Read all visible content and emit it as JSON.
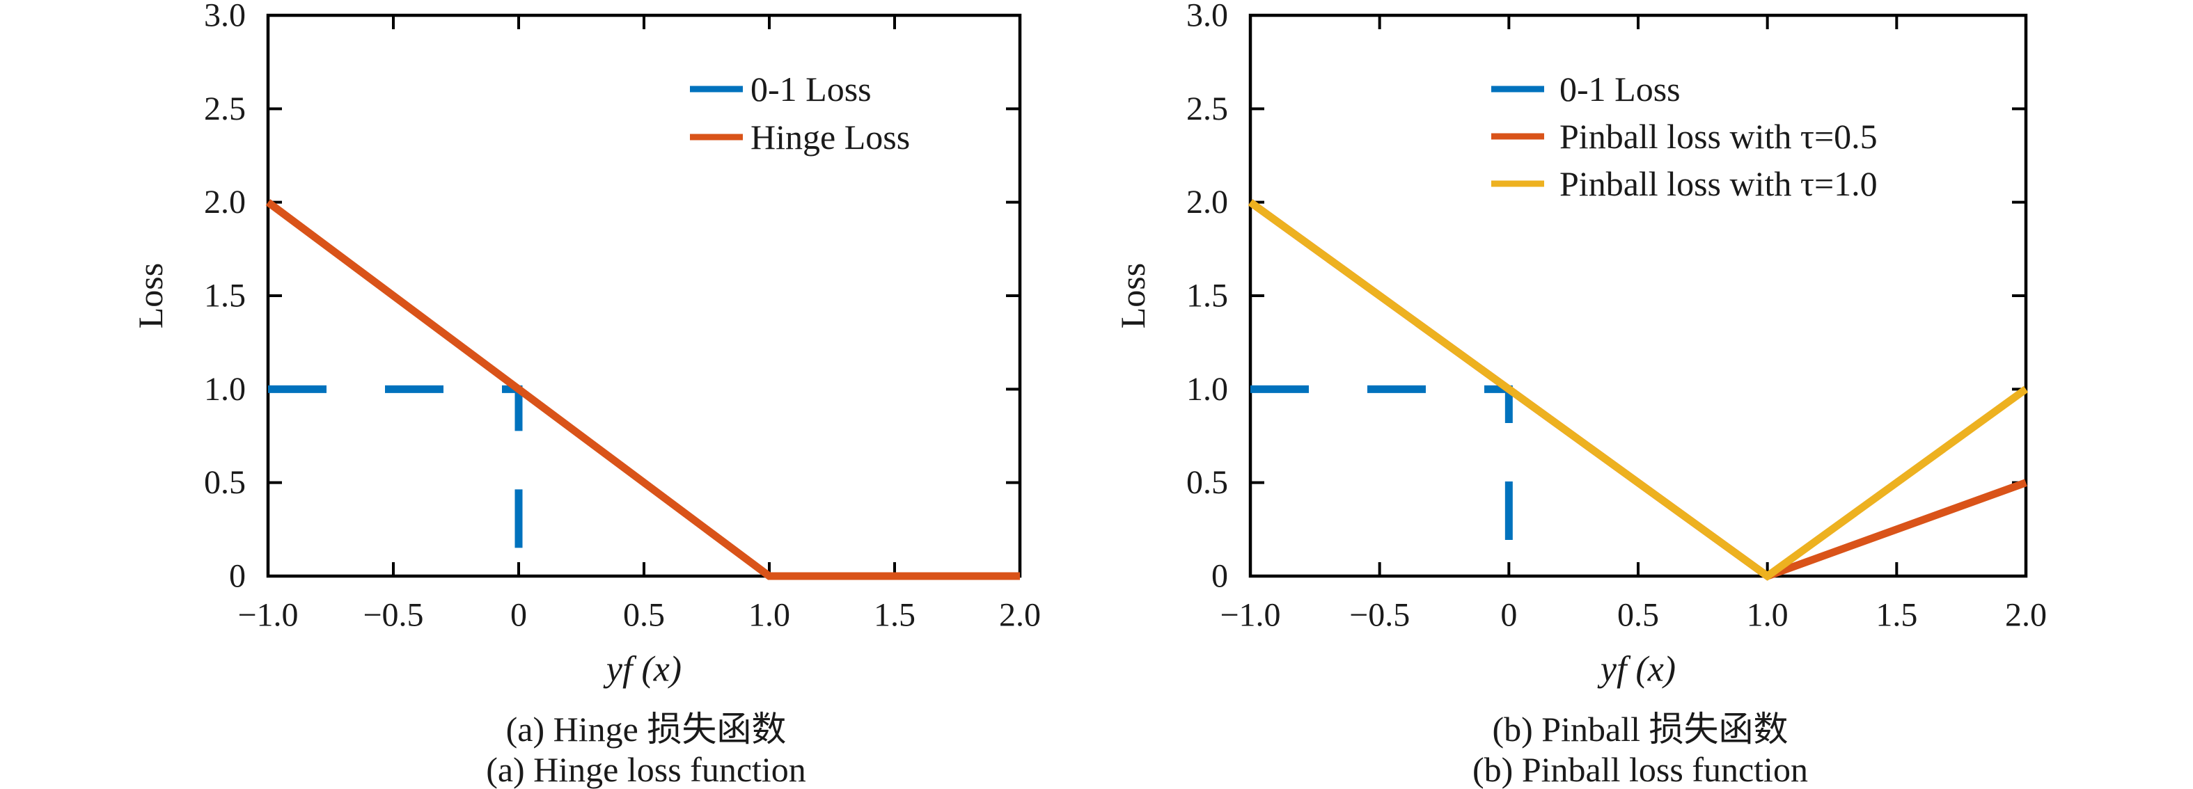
{
  "figure": {
    "background": "#ffffff",
    "axis_color": "#000000",
    "font_color": "#1a1a1a"
  },
  "chart_data": [
    {
      "type": "line",
      "title": "",
      "xlabel": "yf (x)",
      "ylabel": "Loss",
      "xlim": [
        -1,
        2
      ],
      "ylim": [
        0,
        3
      ],
      "grid": false,
      "legend_position": "upper-right-inside-no-box",
      "xticks": {
        "values": [
          -1,
          -0.5,
          0,
          0.5,
          1,
          1.5,
          2
        ],
        "labels": [
          "−1.0",
          "−0.5",
          "0",
          "0.5",
          "1.0",
          "1.5",
          "2.0"
        ]
      },
      "yticks": {
        "values": [
          0,
          0.5,
          1,
          1.5,
          2,
          2.5,
          3
        ],
        "labels": [
          "0",
          "0.5",
          "1.0",
          "1.5",
          "2.0",
          "2.5",
          "3.0"
        ]
      },
      "series": [
        {
          "name": "0-1 Loss",
          "color": "#0072BD",
          "style": "dashed",
          "dash": [
            84,
            84
          ],
          "points": [
            [
              -1,
              1
            ],
            [
              0,
              1
            ],
            [
              0,
              0
            ]
          ]
        },
        {
          "name": "Hinge Loss",
          "color": "#D95319",
          "style": "solid",
          "points": [
            [
              -1,
              2
            ],
            [
              1,
              0
            ],
            [
              2,
              0
            ]
          ]
        }
      ],
      "caption_zh": "(a) Hinge 损失函数",
      "caption_en": "(a) Hinge loss function"
    },
    {
      "type": "line",
      "title": "",
      "xlabel": "yf (x)",
      "ylabel": "Loss",
      "xlim": [
        -1,
        2
      ],
      "ylim": [
        0,
        3
      ],
      "grid": false,
      "legend_position": "upper-center-inside-no-box",
      "xticks": {
        "values": [
          -1,
          -0.5,
          0,
          0.5,
          1,
          1.5,
          2
        ],
        "labels": [
          "−1.0",
          "−0.5",
          "0",
          "0.5",
          "1.0",
          "1.5",
          "2.0"
        ]
      },
      "yticks": {
        "values": [
          0,
          0.5,
          1,
          1.5,
          2,
          2.5,
          3
        ],
        "labels": [
          "0",
          "0.5",
          "1.0",
          "1.5",
          "2.0",
          "2.5",
          "3.0"
        ]
      },
      "series": [
        {
          "name": "0-1 Loss",
          "color": "#0072BD",
          "style": "dashed",
          "dash": [
            84,
            84
          ],
          "points": [
            [
              -1,
              1
            ],
            [
              0,
              1
            ],
            [
              0,
              0
            ]
          ]
        },
        {
          "name": "Pinball loss with τ=0.5",
          "color": "#D95319",
          "style": "solid",
          "points": [
            [
              -1,
              2
            ],
            [
              1,
              0
            ],
            [
              2,
              0.5
            ]
          ]
        },
        {
          "name": "Pinball loss with τ=1.0",
          "color": "#EDB120",
          "style": "solid",
          "points": [
            [
              -1,
              2
            ],
            [
              1,
              0
            ],
            [
              2,
              1
            ]
          ]
        }
      ],
      "caption_zh": "(b) Pinball 损失函数",
      "caption_en": "(b) Pinball loss function"
    }
  ]
}
